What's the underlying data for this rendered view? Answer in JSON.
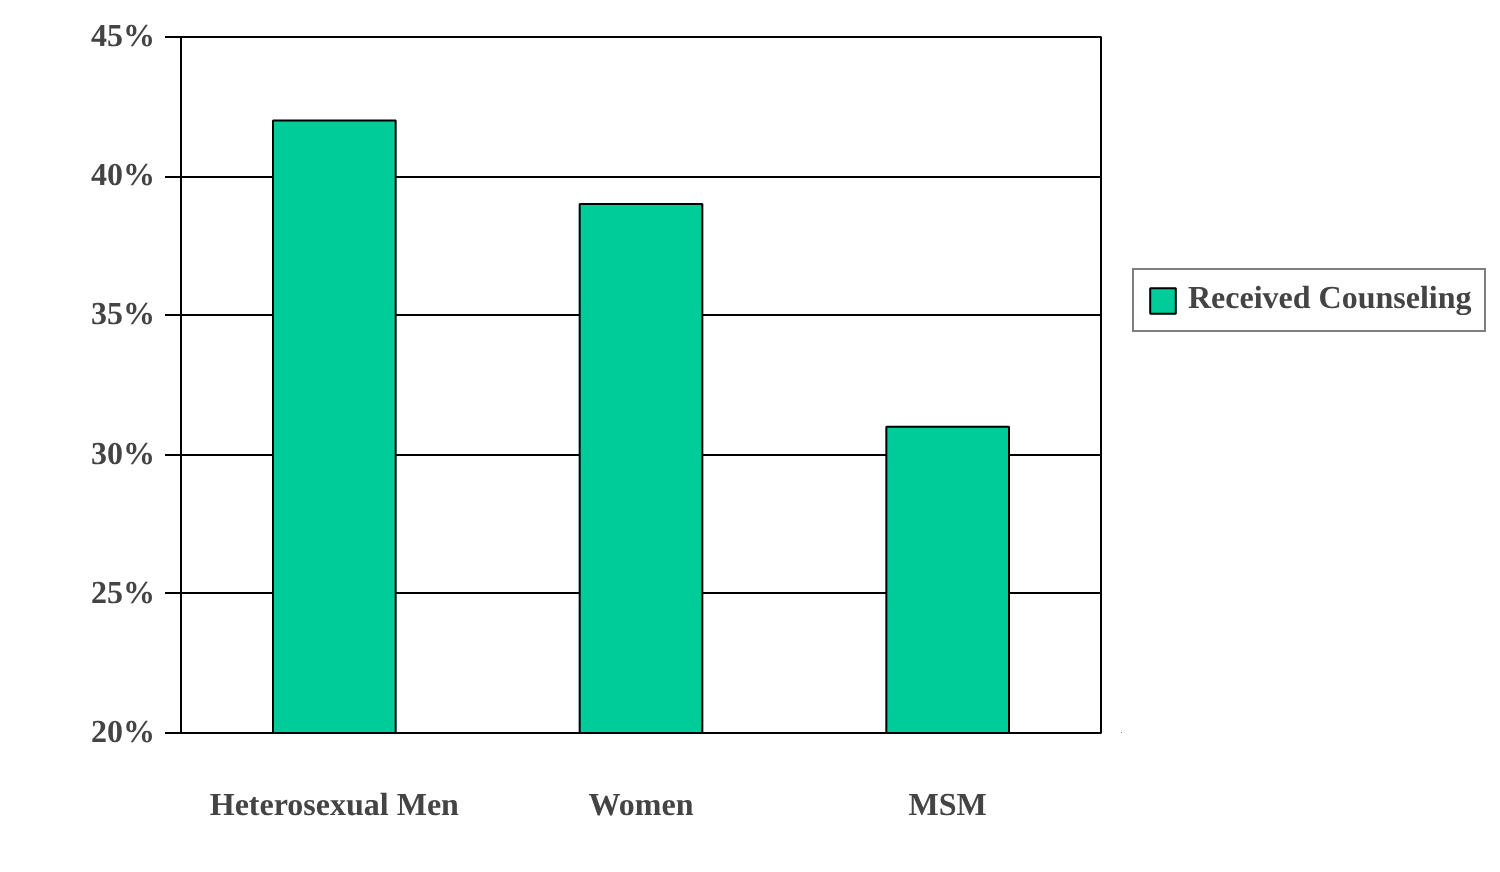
{
  "chart_data": {
    "type": "bar",
    "categories": [
      "Heterosexual Men",
      "Women",
      "MSM"
    ],
    "series": [
      {
        "name": "Received Counseling",
        "color": "#00cc99",
        "values": [
          42,
          39,
          31
        ]
      }
    ],
    "ylim": [
      20,
      45
    ],
    "yticks": [
      {
        "value": 20,
        "label": "20%"
      },
      {
        "value": 25,
        "label": "25%"
      },
      {
        "value": 30,
        "label": "30%"
      },
      {
        "value": 35,
        "label": "35%"
      },
      {
        "value": 40,
        "label": "40%"
      },
      {
        "value": 45,
        "label": "45%"
      }
    ],
    "grid": "y",
    "legend": "right"
  }
}
